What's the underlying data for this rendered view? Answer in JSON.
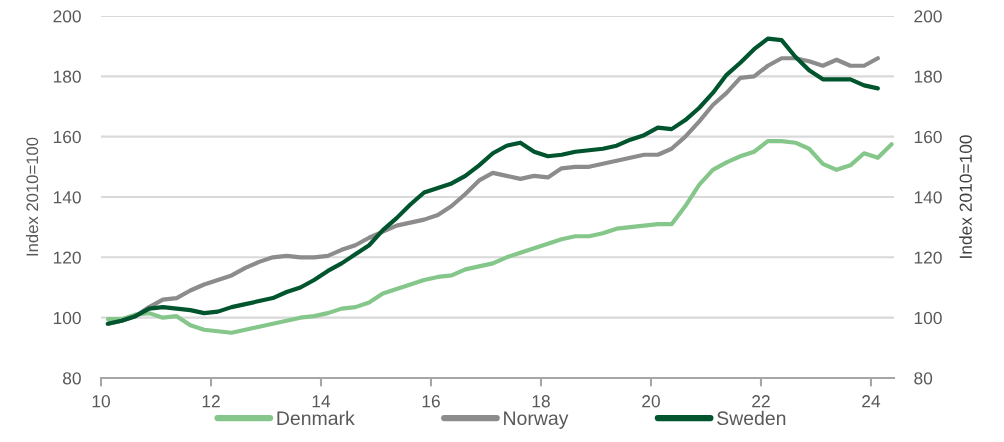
{
  "chart_data": {
    "type": "line",
    "ylabel": "Index 2010=100",
    "y2label": "Index 2010=100",
    "x": [
      10.125,
      10.375,
      10.625,
      10.875,
      11.125,
      11.375,
      11.625,
      11.875,
      12.125,
      12.375,
      12.625,
      12.875,
      13.125,
      13.375,
      13.625,
      13.875,
      14.125,
      14.375,
      14.625,
      14.875,
      15.125,
      15.375,
      15.625,
      15.875,
      16.125,
      16.375,
      16.625,
      16.875,
      17.125,
      17.375,
      17.625,
      17.875,
      18.125,
      18.375,
      18.625,
      18.875,
      19.125,
      19.375,
      19.625,
      19.875,
      20.125,
      20.375,
      20.625,
      20.875,
      21.125,
      21.375,
      21.625,
      21.875,
      22.125,
      22.375,
      22.625,
      22.875,
      23.125,
      23.375,
      23.625,
      23.875,
      24.125,
      24.375
    ],
    "series": [
      {
        "name": "Denmark",
        "color": "#85c78a",
        "values": [
          99.5,
          99.5,
          101,
          101.5,
          100,
          100.5,
          97.5,
          96,
          95.5,
          95,
          96,
          97,
          98,
          99,
          100,
          100.5,
          101.5,
          103,
          103.5,
          105,
          108,
          109.5,
          111,
          112.5,
          113.5,
          114,
          116,
          117,
          118,
          120,
          121.5,
          123,
          124.5,
          126,
          127,
          127,
          128,
          129.5,
          130,
          130.5,
          131,
          131,
          137,
          144,
          149,
          151.5,
          153.5,
          155,
          158.5,
          158.5,
          158,
          156,
          151,
          149,
          150.5,
          154.5,
          153,
          157.5
        ]
      },
      {
        "name": "Norway",
        "color": "#8c8c8c",
        "values": [
          98,
          99,
          100.5,
          103.5,
          106,
          106.5,
          109,
          111,
          112.5,
          114,
          116.5,
          118.5,
          120,
          120.5,
          120,
          120,
          120.5,
          122.5,
          124,
          126.5,
          128.5,
          130.5,
          131.5,
          132.5,
          134,
          137,
          141,
          145.5,
          148,
          147,
          146,
          147,
          146.5,
          149.5,
          150,
          150,
          151,
          152,
          153,
          154,
          154,
          156,
          160,
          165,
          170.5,
          174.5,
          179.5,
          180,
          183.5,
          186,
          186,
          185,
          183.5,
          185.5,
          183.5,
          183.5,
          186,
          null
        ]
      },
      {
        "name": "Sweden",
        "color": "#00552f",
        "values": [
          98,
          99,
          100.5,
          103,
          103.5,
          103,
          102.5,
          101.5,
          102,
          103.5,
          104.5,
          105.5,
          106.5,
          108.5,
          110,
          112.5,
          115.5,
          118,
          121,
          124,
          129,
          133,
          137.5,
          141.5,
          143,
          144.5,
          147,
          150.5,
          154.5,
          157,
          158,
          155,
          153.5,
          154,
          155,
          155.5,
          156,
          157,
          159,
          160.5,
          163,
          162.5,
          165.5,
          169.5,
          174.5,
          180.5,
          184.5,
          189,
          192.5,
          192,
          186.5,
          182,
          179,
          179,
          179,
          177,
          176,
          null
        ]
      }
    ],
    "xlim": [
      10,
      24.42
    ],
    "xticks": [
      10,
      12,
      14,
      16,
      18,
      20,
      22,
      24
    ],
    "ylim": [
      80,
      200
    ],
    "yticks": [
      80,
      100,
      120,
      140,
      160,
      180,
      200
    ],
    "y2lim": [
      80,
      200
    ],
    "y2ticks": [
      80,
      100,
      120,
      140,
      160,
      180,
      200
    ],
    "grid": "y",
    "legend": "bottom",
    "marker": "none",
    "line_style": "solid"
  }
}
